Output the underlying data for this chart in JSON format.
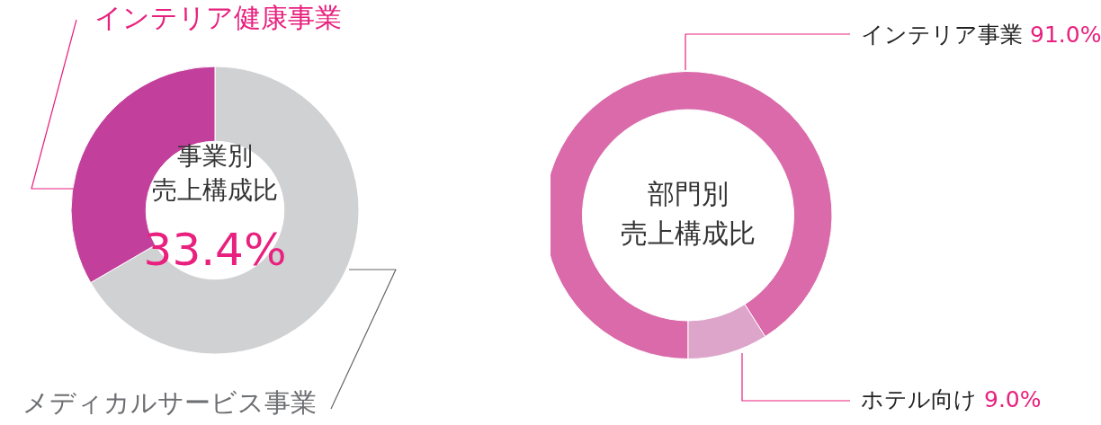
{
  "chart_data": [
    {
      "type": "donut",
      "title": "事業別",
      "subtitle": "売上構成比",
      "categories": [
        "メディカルサービス事業",
        "インテリア健康事業"
      ],
      "values": [
        66.6,
        33.4
      ],
      "colors": [
        "#d0d1d3",
        "#c2409c"
      ],
      "annotations": [
        "33.4%"
      ],
      "legend": false
    },
    {
      "type": "donut",
      "title": "部門別",
      "subtitle": "売上構成比",
      "categories": [
        "インテリア事業",
        "ホテル向け"
      ],
      "values": [
        91.0,
        9.0
      ],
      "colors": [
        "#da6aaa",
        "#dea5ca"
      ],
      "value_labels": [
        "91.0%",
        "9.0%"
      ],
      "legend": false
    }
  ]
}
